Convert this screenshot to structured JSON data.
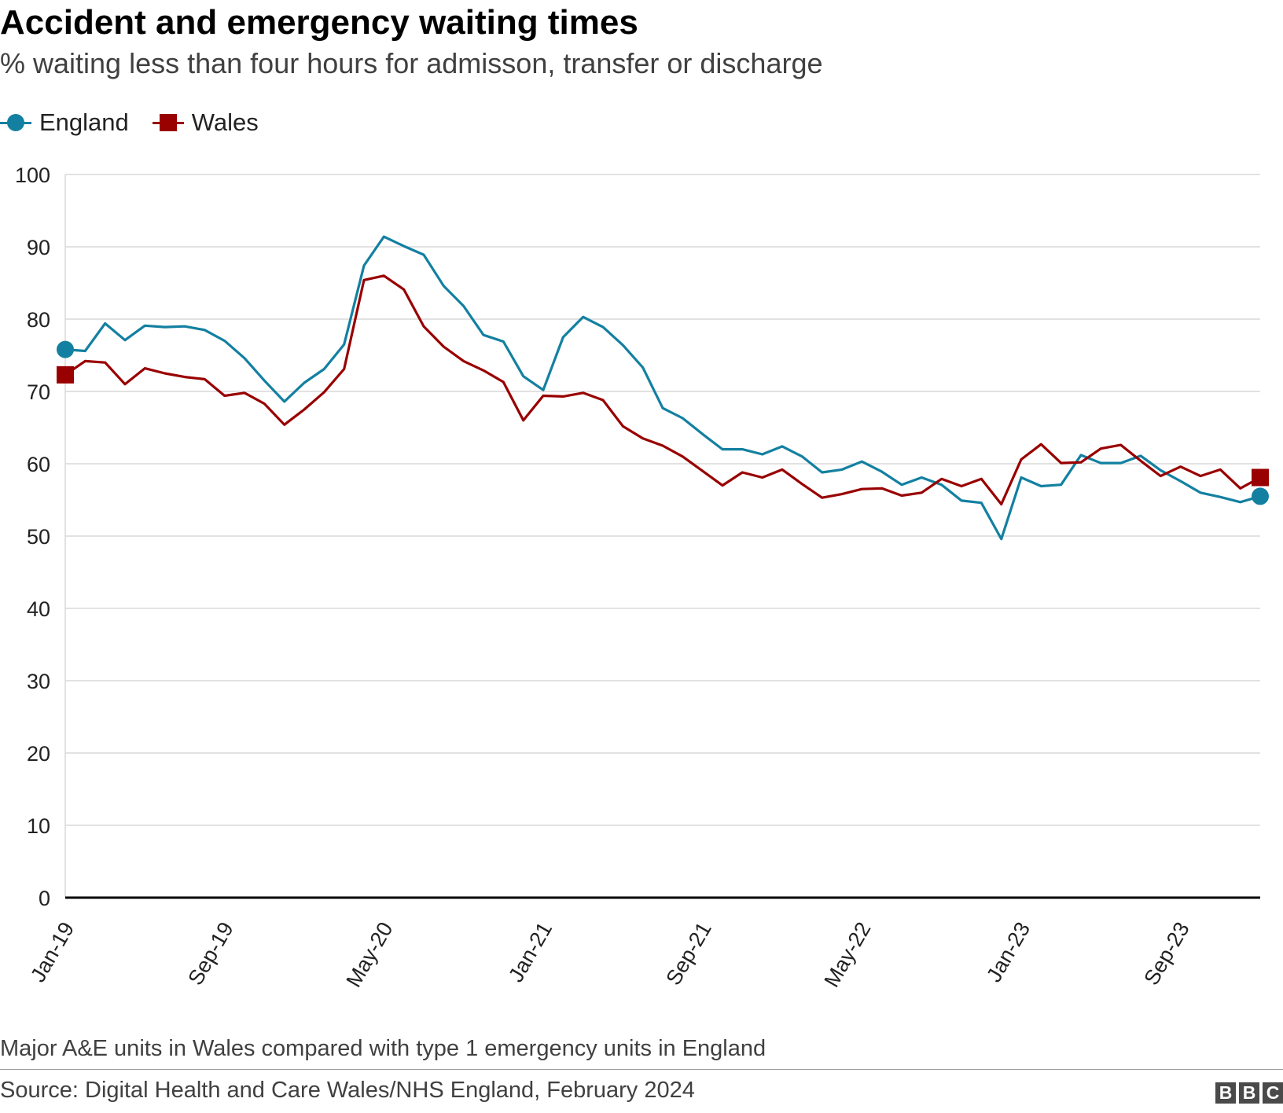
{
  "header": {
    "title": "Accident and emergency waiting times",
    "subtitle": "% waiting less than four hours for admisson, transfer or discharge"
  },
  "colors": {
    "england": "#1380A1",
    "wales": "#990000",
    "grid": "#d9d9d9",
    "axis": "#000000"
  },
  "footer": {
    "note": "Major A&E units in Wales compared with type 1 emergency units in England",
    "source": "Source: Digital Health and Care Wales/NHS England, February 2024",
    "logo_letters": [
      "B",
      "B",
      "C"
    ]
  },
  "chart_data": {
    "type": "line",
    "title": "Accident and emergency waiting times",
    "subtitle": "% waiting less than four hours for admisson, transfer or discharge",
    "xlabel": "",
    "ylabel": "",
    "ylim": [
      0,
      100
    ],
    "yticks": [
      0,
      10,
      20,
      30,
      40,
      50,
      60,
      70,
      80,
      90,
      100
    ],
    "grid": true,
    "legend": "top-left",
    "x": [
      "Jan-19",
      "Feb-19",
      "Mar-19",
      "Apr-19",
      "May-19",
      "Jun-19",
      "Jul-19",
      "Aug-19",
      "Sep-19",
      "Oct-19",
      "Nov-19",
      "Dec-19",
      "Jan-20",
      "Feb-20",
      "Mar-20",
      "Apr-20",
      "May-20",
      "Jun-20",
      "Jul-20",
      "Aug-20",
      "Sep-20",
      "Oct-20",
      "Nov-20",
      "Dec-20",
      "Jan-21",
      "Feb-21",
      "Mar-21",
      "Apr-21",
      "May-21",
      "Jun-21",
      "Jul-21",
      "Aug-21",
      "Sep-21",
      "Oct-21",
      "Nov-21",
      "Dec-21",
      "Jan-22",
      "Feb-22",
      "Mar-22",
      "Apr-22",
      "May-22",
      "Jun-22",
      "Jul-22",
      "Aug-22",
      "Sep-22",
      "Oct-22",
      "Nov-22",
      "Dec-22",
      "Jan-23",
      "Feb-23",
      "Mar-23",
      "Apr-23",
      "May-23",
      "Jun-23",
      "Jul-23",
      "Aug-23",
      "Sep-23",
      "Oct-23",
      "Nov-23",
      "Dec-23",
      "Jan-24"
    ],
    "tick_labels": [
      "Jan-19",
      "Sep-19",
      "May-20",
      "Jan-21",
      "Sep-21",
      "May-22",
      "Jan-23",
      "Sep-23"
    ],
    "series": [
      {
        "name": "England",
        "marker": "circle",
        "values": [
          75.8,
          75.6,
          79.4,
          77.1,
          79.1,
          78.9,
          79.0,
          78.5,
          77.0,
          74.6,
          71.5,
          68.6,
          71.2,
          73.1,
          76.5,
          87.4,
          91.4,
          90.1,
          88.9,
          84.6,
          81.8,
          77.8,
          76.9,
          72.1,
          70.2,
          77.5,
          80.3,
          78.9,
          76.4,
          73.3,
          67.7,
          66.3,
          64.1,
          62.0,
          62.0,
          61.3,
          62.4,
          61.0,
          58.8,
          59.2,
          60.3,
          58.9,
          57.1,
          58.1,
          57.1,
          54.9,
          54.6,
          49.6,
          58.1,
          56.9,
          57.1,
          61.2,
          60.1,
          60.1,
          61.1,
          59.1,
          57.6,
          56.0,
          55.4,
          54.7,
          55.5
        ]
      },
      {
        "name": "Wales",
        "marker": "square",
        "values": [
          72.3,
          74.2,
          74.0,
          71.0,
          73.2,
          72.5,
          72.0,
          71.7,
          69.4,
          69.8,
          68.3,
          65.4,
          67.5,
          69.9,
          73.1,
          85.4,
          86.0,
          84.1,
          79.0,
          76.2,
          74.2,
          72.9,
          71.3,
          66.0,
          69.4,
          69.3,
          69.8,
          68.8,
          65.2,
          63.5,
          62.5,
          61.0,
          59.0,
          57.0,
          58.8,
          58.1,
          59.2,
          57.2,
          55.3,
          55.8,
          56.5,
          56.6,
          55.6,
          56.0,
          57.9,
          56.9,
          57.9,
          54.4,
          60.6,
          62.7,
          60.1,
          60.2,
          62.1,
          62.6,
          60.4,
          58.3,
          59.6,
          58.3,
          59.2,
          56.6,
          58.1
        ]
      }
    ]
  }
}
